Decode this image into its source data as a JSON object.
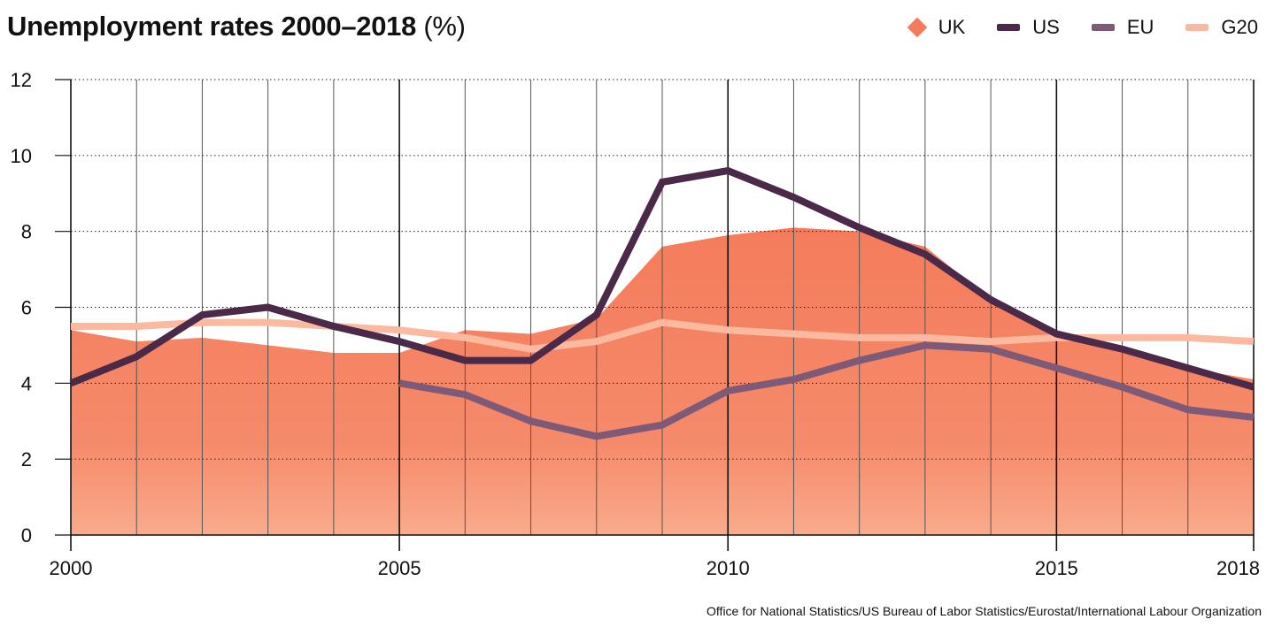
{
  "chart_data": {
    "type": "line",
    "title": "Unemployment rates 2000–2018",
    "title_unit": "(%)",
    "source": "Office for National Statistics/US Bureau of Labor Statistics/Eurostat/International Labour Organization",
    "x": [
      2000,
      2001,
      2002,
      2003,
      2004,
      2005,
      2006,
      2007,
      2008,
      2009,
      2010,
      2011,
      2012,
      2013,
      2014,
      2015,
      2016,
      2017,
      2018
    ],
    "x_tick_labels": [
      "2000",
      "2005",
      "2010",
      "2015",
      "2018"
    ],
    "x_tick_values": [
      2000,
      2005,
      2010,
      2015,
      2018
    ],
    "xlim": [
      2000,
      2018
    ],
    "y_ticks": [
      0,
      2,
      4,
      6,
      8,
      10,
      12
    ],
    "ylim": [
      0,
      12
    ],
    "grid": true,
    "legend_position": "top-right",
    "series": [
      {
        "name": "UK",
        "style": "area",
        "color": "#f47c5c",
        "x": [
          2000,
          2001,
          2002,
          2003,
          2004,
          2005,
          2006,
          2007,
          2008,
          2009,
          2010,
          2011,
          2012,
          2013,
          2014,
          2015,
          2016,
          2017,
          2018
        ],
        "values": [
          5.4,
          5.1,
          5.2,
          5.0,
          4.8,
          4.8,
          5.4,
          5.3,
          5.7,
          7.6,
          7.9,
          8.1,
          8.0,
          7.6,
          6.2,
          5.4,
          4.9,
          4.4,
          4.1
        ]
      },
      {
        "name": "US",
        "style": "line",
        "color": "#4a2a48",
        "x": [
          2000,
          2001,
          2002,
          2003,
          2004,
          2005,
          2006,
          2007,
          2008,
          2009,
          2010,
          2011,
          2012,
          2013,
          2014,
          2015,
          2016,
          2017,
          2018
        ],
        "values": [
          4.0,
          4.7,
          5.8,
          6.0,
          5.5,
          5.1,
          4.6,
          4.6,
          5.8,
          9.3,
          9.6,
          8.9,
          8.1,
          7.4,
          6.2,
          5.3,
          4.9,
          4.4,
          3.9
        ]
      },
      {
        "name": "EU",
        "style": "line",
        "color": "#7d5b78",
        "x": [
          2005,
          2006,
          2007,
          2008,
          2009,
          2010,
          2011,
          2012,
          2013,
          2014,
          2015,
          2016,
          2017,
          2018
        ],
        "values": [
          4.0,
          3.7,
          3.0,
          2.6,
          2.9,
          3.8,
          4.1,
          4.6,
          5.0,
          4.9,
          4.4,
          3.9,
          3.3,
          3.1
        ]
      },
      {
        "name": "G20",
        "style": "line",
        "color": "#fbb9a0",
        "x": [
          2000,
          2001,
          2002,
          2003,
          2004,
          2005,
          2006,
          2007,
          2008,
          2009,
          2010,
          2011,
          2012,
          2013,
          2014,
          2015,
          2016,
          2017,
          2018
        ],
        "values": [
          5.5,
          5.5,
          5.6,
          5.6,
          5.5,
          5.4,
          5.2,
          4.9,
          5.1,
          5.6,
          5.4,
          5.3,
          5.2,
          5.2,
          5.1,
          5.2,
          5.2,
          5.2,
          5.1
        ]
      }
    ]
  }
}
